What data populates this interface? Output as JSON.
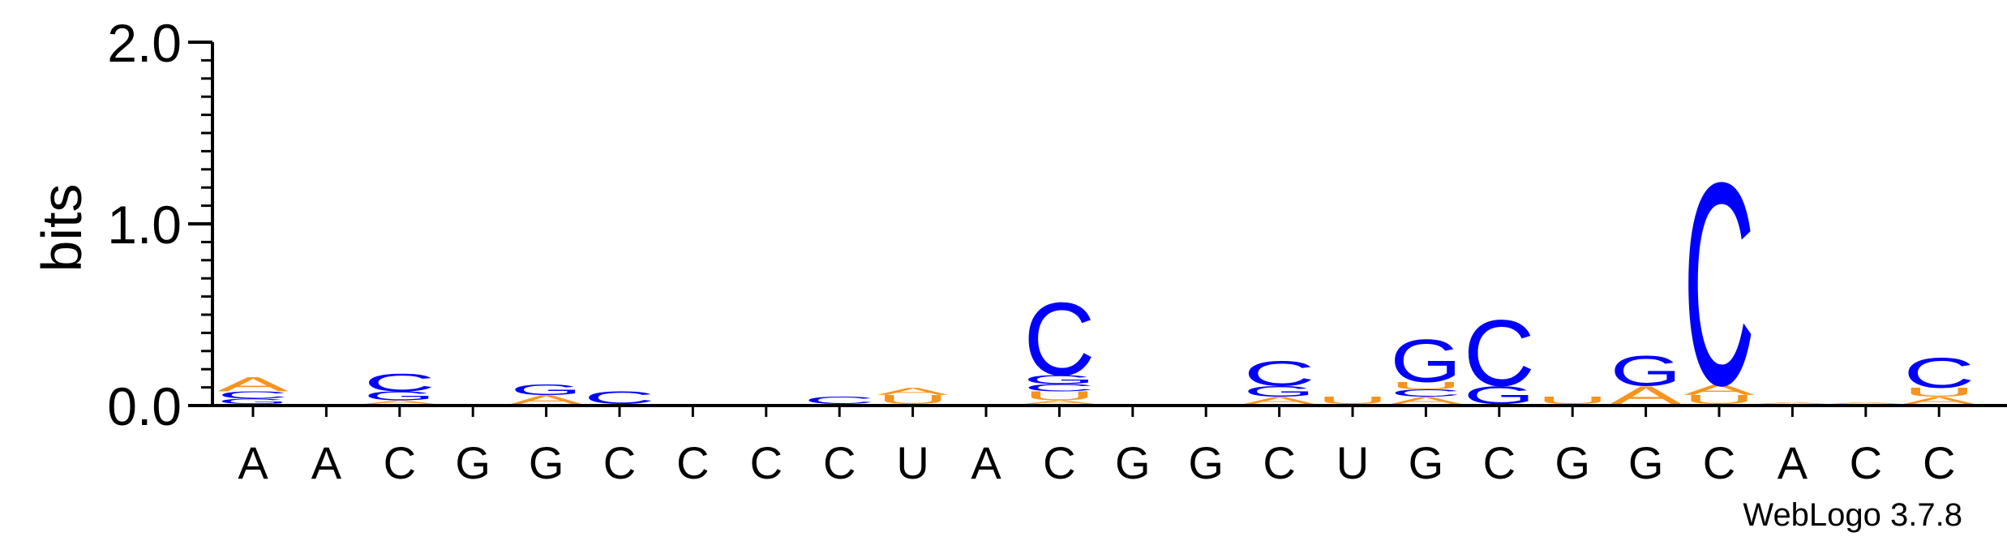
{
  "chart_data": {
    "type": "sequence-logo",
    "ylabel": "bits",
    "ylim": [
      0,
      2.0
    ],
    "yticks": [
      "0.0",
      "1.0",
      "2.0"
    ],
    "colors": {
      "A": "#f7941d",
      "U": "#f7941d",
      "C": "#0000ff",
      "G": "#0000ff"
    },
    "positions": [
      {
        "label": "A",
        "stack": [
          [
            "G",
            0.03
          ],
          [
            "C",
            0.04
          ],
          [
            "A",
            0.08
          ]
        ]
      },
      {
        "label": "A",
        "stack": []
      },
      {
        "label": "C",
        "stack": [
          [
            "A",
            0.02
          ],
          [
            "G",
            0.05
          ],
          [
            "C",
            0.1
          ]
        ]
      },
      {
        "label": "G",
        "stack": []
      },
      {
        "label": "G",
        "stack": [
          [
            "A",
            0.05
          ],
          [
            "G",
            0.06
          ],
          [
            "C",
            0.0
          ]
        ]
      },
      {
        "label": "C",
        "stack": [
          [
            "C",
            0.07
          ]
        ]
      },
      {
        "label": "C",
        "stack": []
      },
      {
        "label": "C",
        "stack": []
      },
      {
        "label": "C",
        "stack": [
          [
            "C",
            0.04
          ]
        ]
      },
      {
        "label": "U",
        "stack": [
          [
            "U",
            0.05
          ],
          [
            "A",
            0.04
          ]
        ]
      },
      {
        "label": "A",
        "stack": []
      },
      {
        "label": "C",
        "stack": [
          [
            "A",
            0.02
          ],
          [
            "U",
            0.05
          ],
          [
            "C",
            0.04
          ],
          [
            "G",
            0.05
          ],
          [
            "C",
            0.41
          ]
        ]
      },
      {
        "label": "G",
        "stack": []
      },
      {
        "label": "G",
        "stack": []
      },
      {
        "label": "C",
        "stack": [
          [
            "A",
            0.04
          ],
          [
            "G",
            0.06
          ],
          [
            "C",
            0.14
          ]
        ]
      },
      {
        "label": "U",
        "stack": [
          [
            "U",
            0.04
          ]
        ]
      },
      {
        "label": "G",
        "stack": [
          [
            "A",
            0.04
          ],
          [
            "C",
            0.04
          ],
          [
            "U",
            0.04
          ],
          [
            "G",
            0.24
          ]
        ]
      },
      {
        "label": "C",
        "stack": [
          [
            "G",
            0.1
          ],
          [
            "C",
            0.37
          ]
        ]
      },
      {
        "label": "G",
        "stack": [
          [
            "U",
            0.04
          ]
        ]
      },
      {
        "label": "G",
        "stack": [
          [
            "A",
            0.1
          ],
          [
            "G",
            0.17
          ]
        ]
      },
      {
        "label": "C",
        "stack": [
          [
            "U",
            0.05
          ],
          [
            "A",
            0.06
          ],
          [
            "C",
            1.14
          ]
        ]
      },
      {
        "label": "A",
        "stack": [
          [
            "A",
            0.01
          ]
        ]
      },
      {
        "label": "C",
        "stack": [
          [
            "A",
            0.01
          ]
        ]
      },
      {
        "label": "C",
        "stack": [
          [
            "A",
            0.04
          ],
          [
            "U",
            0.05
          ],
          [
            "C",
            0.17
          ]
        ]
      }
    ],
    "footer": "WebLogo 3.7.8"
  }
}
